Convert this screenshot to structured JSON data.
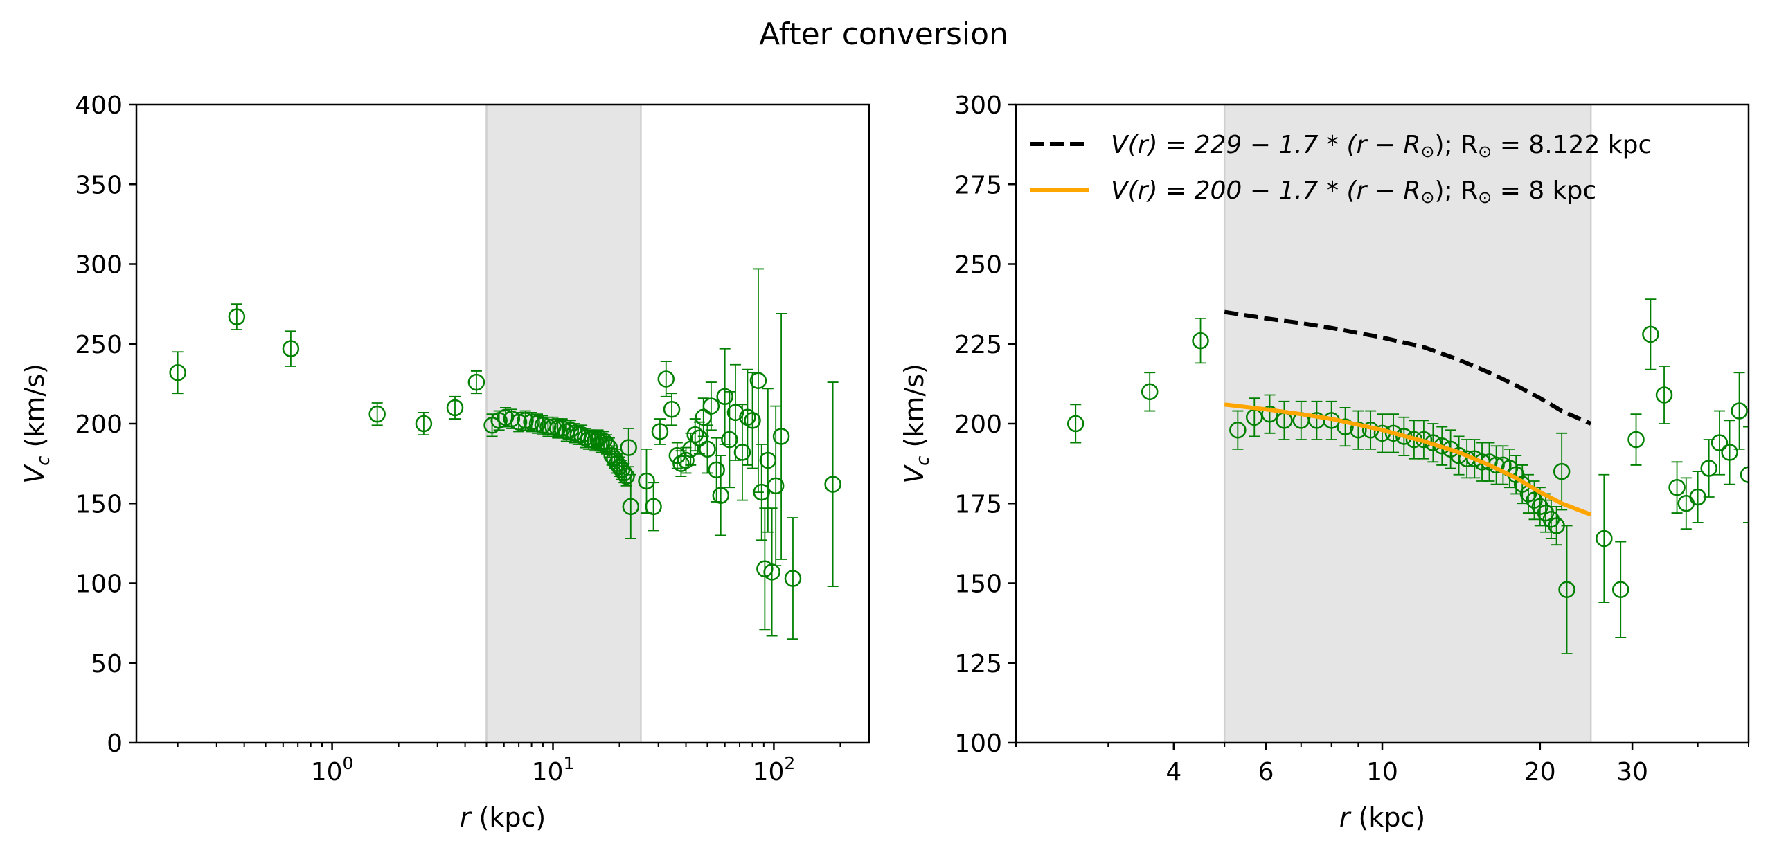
{
  "figure": {
    "title": "After conversion"
  },
  "chart_data": [
    {
      "type": "scatter",
      "xscale": "log",
      "xlim": [
        0.13,
        270
      ],
      "ylim": [
        0,
        400
      ],
      "xlabel_var": "r",
      "xlabel_unit": " (kpc)",
      "ylabel_var": "V",
      "ylabel_sub": "c",
      "ylabel_unit": " (km/s)",
      "xtick_major": [
        1,
        10,
        100
      ],
      "xtick_labels": [
        {
          "base": "10",
          "exp": "0"
        },
        {
          "base": "10",
          "exp": "1"
        },
        {
          "base": "10",
          "exp": "2"
        }
      ],
      "yticks": [
        0,
        50,
        100,
        150,
        200,
        250,
        300,
        350,
        400
      ],
      "ytick_labels": [
        "0",
        "50",
        "100",
        "150",
        "200",
        "250",
        "300",
        "350",
        "400"
      ],
      "shaded_region": [
        5,
        25
      ],
      "grid": false,
      "marker_color": "#008000",
      "series": [
        {
          "marker": "open-circle",
          "points": [
            [
              0.2,
              232,
              13
            ],
            [
              0.37,
              267,
              8
            ],
            [
              0.65,
              247,
              11
            ],
            [
              1.6,
              206,
              7
            ],
            [
              2.6,
              200,
              7
            ],
            [
              3.6,
              210,
              7
            ],
            [
              4.5,
              226,
              7
            ],
            [
              5.3,
              199,
              7
            ],
            [
              5.7,
              202,
              6
            ],
            [
              6.1,
              204,
              6
            ],
            [
              6.5,
              203,
              6
            ],
            [
              7.0,
              201,
              6
            ],
            [
              7.5,
              202,
              6
            ],
            [
              8.0,
              201,
              6
            ],
            [
              8.5,
              200,
              6
            ],
            [
              9.0,
              199,
              6
            ],
            [
              9.5,
              198,
              6
            ],
            [
              10.0,
              198,
              6
            ],
            [
              10.5,
              197,
              6
            ],
            [
              11.0,
              197,
              6
            ],
            [
              11.5,
              195,
              6
            ],
            [
              12.0,
              196,
              6
            ],
            [
              12.5,
              194,
              6
            ],
            [
              13.0,
              193,
              6
            ],
            [
              13.5,
              193,
              6
            ],
            [
              14.0,
              191,
              6
            ],
            [
              14.5,
              190,
              6
            ],
            [
              15.0,
              190,
              6
            ],
            [
              15.5,
              189,
              6
            ],
            [
              16.0,
              190,
              6
            ],
            [
              16.5,
              188,
              6
            ],
            [
              17.0,
              189,
              6
            ],
            [
              17.5,
              187,
              6
            ],
            [
              18.0,
              185,
              6
            ],
            [
              18.5,
              180,
              6
            ],
            [
              19.0,
              178,
              6
            ],
            [
              19.5,
              175,
              6
            ],
            [
              20.0,
              173,
              6
            ],
            [
              20.5,
              171,
              6
            ],
            [
              21.0,
              169,
              6
            ],
            [
              21.5,
              167,
              6
            ],
            [
              22.0,
              185,
              12
            ],
            [
              22.5,
              148,
              20
            ],
            [
              26.5,
              164,
              20
            ],
            [
              28.5,
              148,
              15
            ],
            [
              30.5,
              195,
              8
            ],
            [
              32.5,
              228,
              11
            ],
            [
              34.5,
              209,
              10
            ],
            [
              36.5,
              180,
              8
            ],
            [
              38.0,
              175,
              8
            ],
            [
              40.0,
              177,
              8
            ],
            [
              42.0,
              184,
              10
            ],
            [
              44.0,
              193,
              10
            ],
            [
              46.0,
              191,
              10
            ],
            [
              48.0,
              204,
              12
            ],
            [
              50.0,
              184,
              15
            ],
            [
              52.0,
              211,
              15
            ],
            [
              55.0,
              171,
              20
            ],
            [
              57.5,
              155,
              25
            ],
            [
              60.0,
              217,
              30
            ],
            [
              63.0,
              190,
              30
            ],
            [
              67.0,
              207,
              30
            ],
            [
              72.0,
              182,
              30
            ],
            [
              76.0,
              204,
              30
            ],
            [
              80.0,
              202,
              30
            ],
            [
              85.0,
              227,
              70
            ],
            [
              88.0,
              157,
              30
            ],
            [
              91.0,
              109,
              38
            ],
            [
              94.0,
              177,
              45
            ],
            [
              98.0,
              107,
              40
            ],
            [
              102.0,
              161,
              50
            ],
            [
              108.0,
              192,
              77
            ],
            [
              122.0,
              103,
              38
            ],
            [
              185.0,
              162,
              64
            ]
          ]
        }
      ]
    },
    {
      "type": "scatter",
      "xscale": "log",
      "xlim": [
        2,
        50
      ],
      "ylim": [
        100,
        300
      ],
      "xlabel_var": "r",
      "xlabel_unit": " (kpc)",
      "ylabel_var": "V",
      "ylabel_sub": "c",
      "ylabel_unit": " (km/s)",
      "xtick_major": [
        4,
        6,
        10,
        20,
        30
      ],
      "xtick_labels": [
        "4",
        "6",
        "10",
        "20",
        "30"
      ],
      "yticks": [
        100,
        125,
        150,
        175,
        200,
        225,
        250,
        275,
        300
      ],
      "ytick_labels": [
        "100",
        "125",
        "150",
        "175",
        "200",
        "225",
        "250",
        "275",
        "300"
      ],
      "shaded_region": [
        5,
        25
      ],
      "grid": false,
      "legend_position": "top-left",
      "legend": [
        {
          "style": "dashed",
          "color": "#000000",
          "label_a": "V(r) = 229 − 1.7 * (r − R",
          "sun_sub": "⊙",
          "label_b": ");  R",
          "label_c": " = 8.122 kpc"
        },
        {
          "style": "solid",
          "color": "#ffa500",
          "label_a": "V(r) = 200 − 1.7 * (r − R",
          "sun_sub": "⊙",
          "label_b": ");  R",
          "label_c": " = 8 kpc"
        }
      ],
      "lines": [
        {
          "name_ref": 0,
          "style": "dashed",
          "color": "#000000",
          "x": [
            5,
            6,
            7,
            8,
            10,
            12,
            14,
            16,
            18,
            20,
            22,
            25
          ],
          "y": [
            235,
            233,
            231.5,
            230,
            227,
            224,
            220,
            216,
            212,
            208,
            204,
            200
          ]
        },
        {
          "name_ref": 1,
          "style": "solid",
          "color": "#ffa500",
          "x": [
            5,
            6,
            7,
            8,
            10,
            12,
            14,
            16,
            18,
            20,
            22,
            25
          ],
          "y": [
            206,
            204.5,
            203,
            201.5,
            198,
            194.5,
            191,
            187,
            183,
            178.5,
            175,
            171.5
          ]
        }
      ],
      "marker_color": "#008000",
      "series": [
        {
          "marker": "open-circle",
          "points": [
            [
              2.6,
              200,
              6
            ],
            [
              3.6,
              210,
              6
            ],
            [
              4.5,
              226,
              7
            ],
            [
              5.3,
              198,
              6
            ],
            [
              5.7,
              202,
              6
            ],
            [
              6.1,
              203,
              6
            ],
            [
              6.5,
              201,
              6
            ],
            [
              7.0,
              201,
              6
            ],
            [
              7.5,
              201,
              6
            ],
            [
              8.0,
              201,
              6
            ],
            [
              8.5,
              199,
              6
            ],
            [
              9.0,
              198,
              6
            ],
            [
              9.5,
              198,
              6
            ],
            [
              10.0,
              197,
              6
            ],
            [
              10.5,
              197,
              6
            ],
            [
              11.0,
              196,
              6
            ],
            [
              11.5,
              195,
              6
            ],
            [
              12.0,
              195,
              6
            ],
            [
              12.5,
              194,
              6
            ],
            [
              13.0,
              193,
              6
            ],
            [
              13.5,
              192,
              6
            ],
            [
              14.0,
              190,
              6
            ],
            [
              14.5,
              189,
              6
            ],
            [
              15.0,
              189,
              6
            ],
            [
              15.5,
              188,
              6
            ],
            [
              16.0,
              188,
              6
            ],
            [
              16.5,
              187,
              6
            ],
            [
              17.0,
              187,
              6
            ],
            [
              17.5,
              186,
              6
            ],
            [
              18.0,
              184,
              6
            ],
            [
              18.5,
              181,
              6
            ],
            [
              19.0,
              178,
              6
            ],
            [
              19.5,
              176,
              6
            ],
            [
              20.0,
              174,
              6
            ],
            [
              20.5,
              172,
              6
            ],
            [
              21.0,
              170,
              6
            ],
            [
              21.5,
              168,
              6
            ],
            [
              22.0,
              185,
              12
            ],
            [
              22.5,
              148,
              20
            ],
            [
              26.5,
              164,
              20
            ],
            [
              28.5,
              148,
              15
            ],
            [
              30.5,
              195,
              8
            ],
            [
              32.5,
              228,
              11
            ],
            [
              34.5,
              209,
              9
            ],
            [
              36.5,
              180,
              8
            ],
            [
              38.0,
              175,
              8
            ],
            [
              40.0,
              177,
              8
            ],
            [
              42.0,
              186,
              9
            ],
            [
              44.0,
              194,
              10
            ],
            [
              46.0,
              191,
              10
            ],
            [
              48.0,
              204,
              12
            ],
            [
              50.0,
              184,
              15
            ]
          ]
        }
      ]
    }
  ]
}
